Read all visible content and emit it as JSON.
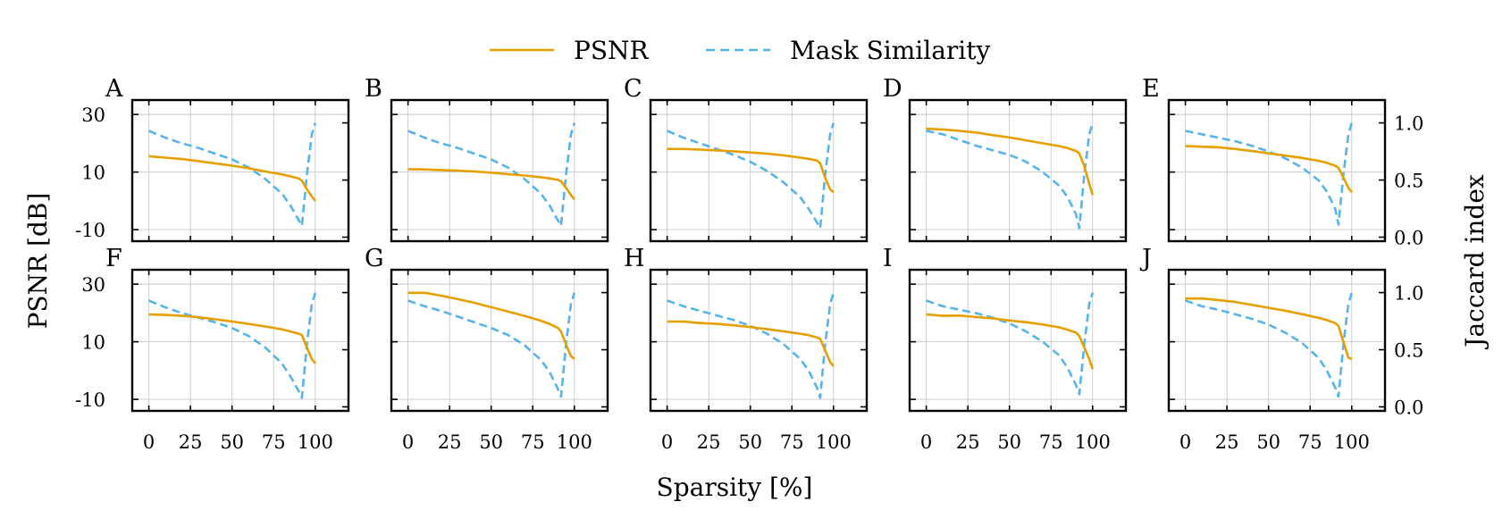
{
  "figure": {
    "legend": [
      {
        "label": "PSNR",
        "color": "#e69f00",
        "style": "solid"
      },
      {
        "label": "Mask Similarity",
        "color": "#56b4e9",
        "style": "dashed"
      }
    ],
    "ylabel_left": "PSNR [dB]",
    "ylabel_right": "Jaccard index",
    "xlabel": "Sparsity [%]"
  },
  "chart_data": {
    "type": "line",
    "layout": "2 rows x 5 columns, shared axes",
    "xlim": [
      -10,
      120
    ],
    "ylim_left": [
      -14,
      35
    ],
    "ylim_right": [
      -0.035,
      1.2
    ],
    "xticks": [
      0,
      25,
      50,
      75,
      100
    ],
    "yticks_left": [
      -10,
      10,
      30
    ],
    "yticks_right": [
      0.0,
      0.5,
      1.0
    ],
    "ytick_labels_right": [
      "0.0",
      "0.5",
      "1.0"
    ],
    "sparsity": [
      0,
      10,
      20,
      30,
      40,
      50,
      60,
      70,
      80,
      85,
      90,
      92,
      95,
      98,
      100
    ],
    "panels": [
      {
        "label": "A",
        "psnr": [
          15.5,
          15.0,
          14.5,
          13.8,
          13.0,
          12.2,
          11.3,
          10.2,
          9.2,
          8.5,
          7.8,
          7.0,
          4.0,
          1.5,
          0.0
        ],
        "jaccard": [
          0.93,
          0.87,
          0.82,
          0.78,
          0.73,
          0.68,
          0.61,
          0.51,
          0.38,
          0.28,
          0.15,
          0.1,
          0.55,
          0.9,
          1.0
        ]
      },
      {
        "label": "B",
        "psnr": [
          11.0,
          10.9,
          10.7,
          10.5,
          10.2,
          9.8,
          9.3,
          8.8,
          8.2,
          7.8,
          7.3,
          6.8,
          4.5,
          2.0,
          0.5
        ],
        "jaccard": [
          0.93,
          0.87,
          0.82,
          0.78,
          0.73,
          0.68,
          0.61,
          0.51,
          0.38,
          0.28,
          0.15,
          0.1,
          0.55,
          0.9,
          1.0
        ]
      },
      {
        "label": "C",
        "psnr": [
          18.0,
          18.0,
          17.8,
          17.5,
          17.2,
          16.8,
          16.4,
          15.8,
          15.0,
          14.6,
          14.0,
          13.0,
          8.0,
          4.0,
          3.0
        ],
        "jaccard": [
          0.93,
          0.87,
          0.82,
          0.77,
          0.72,
          0.66,
          0.58,
          0.48,
          0.35,
          0.25,
          0.13,
          0.08,
          0.55,
          0.9,
          1.0
        ]
      },
      {
        "label": "D",
        "psnr": [
          25.0,
          24.8,
          24.3,
          23.7,
          22.8,
          22.0,
          21.0,
          20.0,
          19.0,
          18.3,
          17.3,
          16.5,
          12.0,
          6.0,
          2.0
        ],
        "jaccard": [
          0.93,
          0.9,
          0.85,
          0.8,
          0.76,
          0.72,
          0.66,
          0.57,
          0.45,
          0.35,
          0.2,
          0.08,
          0.55,
          0.9,
          1.0
        ]
      },
      {
        "label": "E",
        "psnr": [
          19.0,
          18.8,
          18.6,
          18.0,
          17.3,
          16.5,
          15.7,
          14.9,
          13.9,
          13.2,
          12.2,
          11.5,
          8.0,
          4.5,
          3.0
        ],
        "jaccard": [
          0.93,
          0.9,
          0.87,
          0.84,
          0.8,
          0.75,
          0.69,
          0.61,
          0.5,
          0.4,
          0.25,
          0.11,
          0.55,
          0.9,
          1.0
        ]
      },
      {
        "label": "F",
        "psnr": [
          19.5,
          19.3,
          19.0,
          18.5,
          17.8,
          17.0,
          16.2,
          15.3,
          14.3,
          13.6,
          12.8,
          12.3,
          8.0,
          4.0,
          2.5
        ],
        "jaccard": [
          0.93,
          0.87,
          0.82,
          0.78,
          0.74,
          0.69,
          0.62,
          0.52,
          0.38,
          0.27,
          0.14,
          0.08,
          0.55,
          0.9,
          1.0
        ]
      },
      {
        "label": "G",
        "psnr": [
          27.0,
          27.0,
          26.0,
          24.8,
          23.5,
          22.0,
          20.5,
          19.0,
          17.3,
          16.2,
          14.8,
          13.5,
          9.0,
          5.0,
          4.0
        ],
        "jaccard": [
          0.93,
          0.88,
          0.84,
          0.79,
          0.74,
          0.69,
          0.63,
          0.54,
          0.41,
          0.31,
          0.16,
          0.09,
          0.55,
          0.9,
          1.0
        ]
      },
      {
        "label": "H",
        "psnr": [
          17.0,
          17.0,
          16.5,
          16.2,
          15.7,
          15.1,
          14.4,
          13.6,
          12.8,
          12.3,
          11.5,
          11.0,
          7.0,
          3.0,
          1.5
        ],
        "jaccard": [
          0.93,
          0.88,
          0.84,
          0.8,
          0.76,
          0.71,
          0.64,
          0.55,
          0.42,
          0.32,
          0.17,
          0.08,
          0.55,
          0.9,
          1.0
        ]
      },
      {
        "label": "I",
        "psnr": [
          19.5,
          19.0,
          19.1,
          18.6,
          18.1,
          17.4,
          16.8,
          16.0,
          15.0,
          14.2,
          13.2,
          12.0,
          8.0,
          4.0,
          0.5
        ],
        "jaccard": [
          0.93,
          0.88,
          0.85,
          0.82,
          0.78,
          0.73,
          0.66,
          0.57,
          0.45,
          0.34,
          0.19,
          0.11,
          0.55,
          0.9,
          1.0
        ]
      },
      {
        "label": "J",
        "psnr": [
          25.0,
          25.0,
          24.5,
          23.8,
          22.8,
          21.8,
          20.8,
          19.6,
          18.3,
          17.5,
          16.5,
          15.5,
          10.0,
          4.5,
          4.0
        ],
        "jaccard": [
          0.93,
          0.88,
          0.85,
          0.81,
          0.77,
          0.72,
          0.65,
          0.56,
          0.43,
          0.32,
          0.17,
          0.09,
          0.55,
          0.9,
          1.0
        ]
      }
    ]
  }
}
